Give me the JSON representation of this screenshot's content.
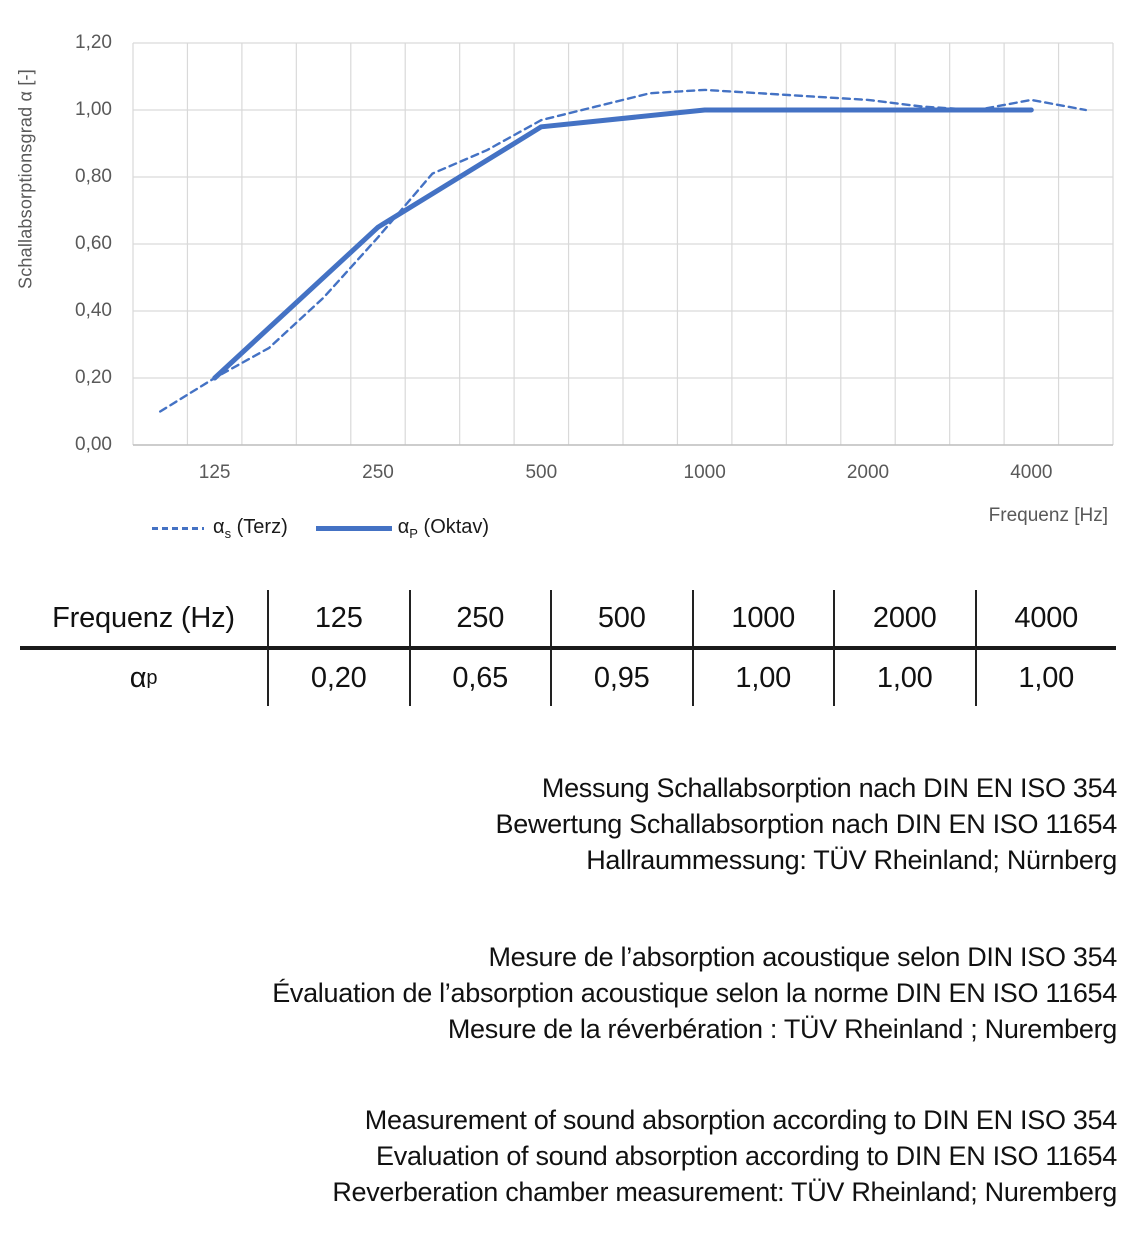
{
  "chart_data": {
    "type": "line",
    "title": "",
    "xlabel": "Frequenz [Hz]",
    "ylabel": "Schallabsorptionsgrad α [-]",
    "x_scale": "logarithmic third-octave categories",
    "categories": [
      100,
      125,
      160,
      200,
      250,
      315,
      400,
      500,
      630,
      800,
      1000,
      1250,
      1600,
      2000,
      2500,
      3150,
      4000,
      5000
    ],
    "x_tick_freqs": [
      125,
      250,
      500,
      1000,
      2000,
      4000
    ],
    "x_tick_labels": [
      "125",
      "250",
      "500",
      "1000",
      "2000",
      "4000"
    ],
    "y_tick_labels": [
      "1,20",
      "1,00",
      "0,80",
      "0,60",
      "0,40",
      "0,20",
      "0,00"
    ],
    "ylim": [
      0,
      1.2
    ],
    "grid": true,
    "legend_position": "bottom-left",
    "series": [
      {
        "name": "αs (Terz)",
        "style": "dashed",
        "color": "#4472C4",
        "width": 2.4,
        "x": [
          100,
          125,
          160,
          200,
          250,
          315,
          400,
          500,
          630,
          800,
          1000,
          1250,
          1600,
          2000,
          2500,
          3150,
          4000,
          5000
        ],
        "values": [
          0.1,
          0.2,
          0.29,
          0.44,
          0.62,
          0.81,
          0.88,
          0.97,
          1.01,
          1.05,
          1.06,
          1.05,
          1.04,
          1.03,
          1.01,
          1.0,
          1.03,
          1.0
        ]
      },
      {
        "name": "αP (Oktav)",
        "style": "solid",
        "color": "#4472C4",
        "width": 5,
        "x": [
          125,
          250,
          500,
          1000,
          2000,
          4000
        ],
        "values": [
          0.2,
          0.65,
          0.95,
          1.0,
          1.0,
          1.0
        ]
      }
    ]
  },
  "legend": [
    {
      "symbol": "α",
      "sub": "s",
      "label": "(Terz)"
    },
    {
      "symbol": "α",
      "sub": "P",
      "label": "(Oktav)"
    }
  ],
  "table": {
    "header_label": "Frequenz (Hz)",
    "frequencies": [
      "125",
      "250",
      "500",
      "1000",
      "2000",
      "4000"
    ],
    "row_symbol": "α",
    "row_sub": "p",
    "values": [
      "0,20",
      "0,65",
      "0,95",
      "1,00",
      "1,00",
      "1,00"
    ]
  },
  "notes": {
    "de": [
      "Messung Schallabsorption nach DIN EN ISO 354",
      "Bewertung Schallabsorption nach DIN EN ISO 11654",
      "Hallraummessung: TÜV Rheinland; Nürnberg"
    ],
    "fr": [
      "Mesure de l’absorption acoustique selon DIN ISO 354",
      "Évaluation de l’absorption acoustique selon la norme DIN EN ISO 11654",
      "Mesure de la réverbération : TÜV Rheinland ; Nuremberg"
    ],
    "en": [
      "Measurement of sound absorption according to DIN EN ISO 354",
      "Evaluation of sound absorption according to DIN EN ISO 11654",
      "Reverberation chamber measurement: TÜV Rheinland; Nuremberg"
    ]
  },
  "colors": {
    "line": "#4472C4",
    "grid": "#D9D9D9",
    "axis_line": "#BFBFBF",
    "axis_text": "#595959",
    "text": "#111111"
  }
}
